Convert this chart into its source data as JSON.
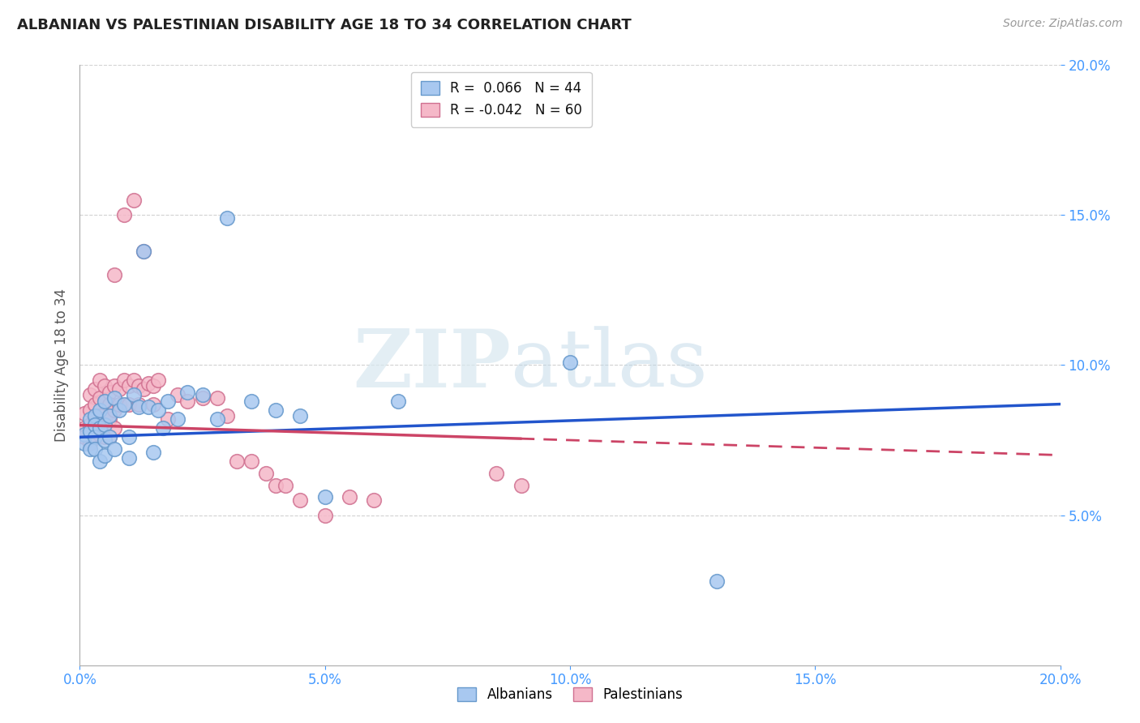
{
  "title": "ALBANIAN VS PALESTINIAN DISABILITY AGE 18 TO 34 CORRELATION CHART",
  "source": "Source: ZipAtlas.com",
  "ylabel": "Disability Age 18 to 34",
  "xlim": [
    0.0,
    0.2
  ],
  "ylim": [
    0.0,
    0.2
  ],
  "xtick_vals": [
    0.0,
    0.05,
    0.1,
    0.15,
    0.2
  ],
  "ytick_vals": [
    0.05,
    0.1,
    0.15,
    0.2
  ],
  "albanian_color": "#a8c8f0",
  "albanian_edge": "#6699cc",
  "palestinian_color": "#f5b8c8",
  "palestinian_edge": "#d07090",
  "trend_albanian_color": "#2255cc",
  "trend_palestinian_color": "#cc4466",
  "legend_line1": "R =  0.066   N = 44",
  "legend_line2": "R = -0.042   N = 60",
  "watermark_zip": "ZIP",
  "watermark_atlas": "atlas",
  "background_color": "#ffffff",
  "grid_color": "#cccccc",
  "albanian_x": [
    0.001,
    0.001,
    0.002,
    0.002,
    0.002,
    0.003,
    0.003,
    0.003,
    0.003,
    0.004,
    0.004,
    0.004,
    0.005,
    0.005,
    0.005,
    0.005,
    0.006,
    0.006,
    0.007,
    0.007,
    0.008,
    0.009,
    0.01,
    0.01,
    0.011,
    0.012,
    0.013,
    0.014,
    0.015,
    0.016,
    0.017,
    0.018,
    0.02,
    0.022,
    0.025,
    0.028,
    0.03,
    0.035,
    0.04,
    0.045,
    0.05,
    0.065,
    0.1,
    0.13
  ],
  "albanian_y": [
    0.077,
    0.074,
    0.082,
    0.078,
    0.072,
    0.083,
    0.08,
    0.076,
    0.072,
    0.085,
    0.079,
    0.068,
    0.088,
    0.08,
    0.075,
    0.07,
    0.083,
    0.076,
    0.089,
    0.072,
    0.085,
    0.087,
    0.076,
    0.069,
    0.09,
    0.086,
    0.138,
    0.086,
    0.071,
    0.085,
    0.079,
    0.088,
    0.082,
    0.091,
    0.09,
    0.082,
    0.149,
    0.088,
    0.085,
    0.083,
    0.056,
    0.088,
    0.101,
    0.028
  ],
  "palestinian_x": [
    0.001,
    0.001,
    0.001,
    0.002,
    0.002,
    0.002,
    0.002,
    0.003,
    0.003,
    0.003,
    0.003,
    0.004,
    0.004,
    0.004,
    0.004,
    0.005,
    0.005,
    0.005,
    0.005,
    0.006,
    0.006,
    0.006,
    0.006,
    0.007,
    0.007,
    0.007,
    0.007,
    0.008,
    0.008,
    0.009,
    0.009,
    0.01,
    0.01,
    0.011,
    0.011,
    0.012,
    0.012,
    0.013,
    0.013,
    0.014,
    0.015,
    0.015,
    0.016,
    0.018,
    0.02,
    0.022,
    0.025,
    0.028,
    0.03,
    0.032,
    0.035,
    0.038,
    0.04,
    0.042,
    0.045,
    0.05,
    0.055,
    0.06,
    0.085,
    0.09
  ],
  "palestinian_y": [
    0.079,
    0.084,
    0.076,
    0.09,
    0.085,
    0.08,
    0.074,
    0.092,
    0.087,
    0.082,
    0.076,
    0.095,
    0.089,
    0.083,
    0.077,
    0.093,
    0.088,
    0.082,
    0.076,
    0.091,
    0.087,
    0.082,
    0.076,
    0.093,
    0.13,
    0.085,
    0.079,
    0.092,
    0.087,
    0.095,
    0.15,
    0.093,
    0.087,
    0.095,
    0.155,
    0.093,
    0.087,
    0.138,
    0.092,
    0.094,
    0.093,
    0.087,
    0.095,
    0.082,
    0.09,
    0.088,
    0.089,
    0.089,
    0.083,
    0.068,
    0.068,
    0.064,
    0.06,
    0.06,
    0.055,
    0.05,
    0.056,
    0.055,
    0.064,
    0.06
  ],
  "trend_alb_x0": 0.0,
  "trend_alb_y0": 0.076,
  "trend_alb_x1": 0.2,
  "trend_alb_y1": 0.087,
  "trend_pal_x0": 0.0,
  "trend_pal_y0": 0.08,
  "trend_pal_x1": 0.2,
  "trend_pal_y1": 0.07,
  "trend_pal_solid_end": 0.09
}
